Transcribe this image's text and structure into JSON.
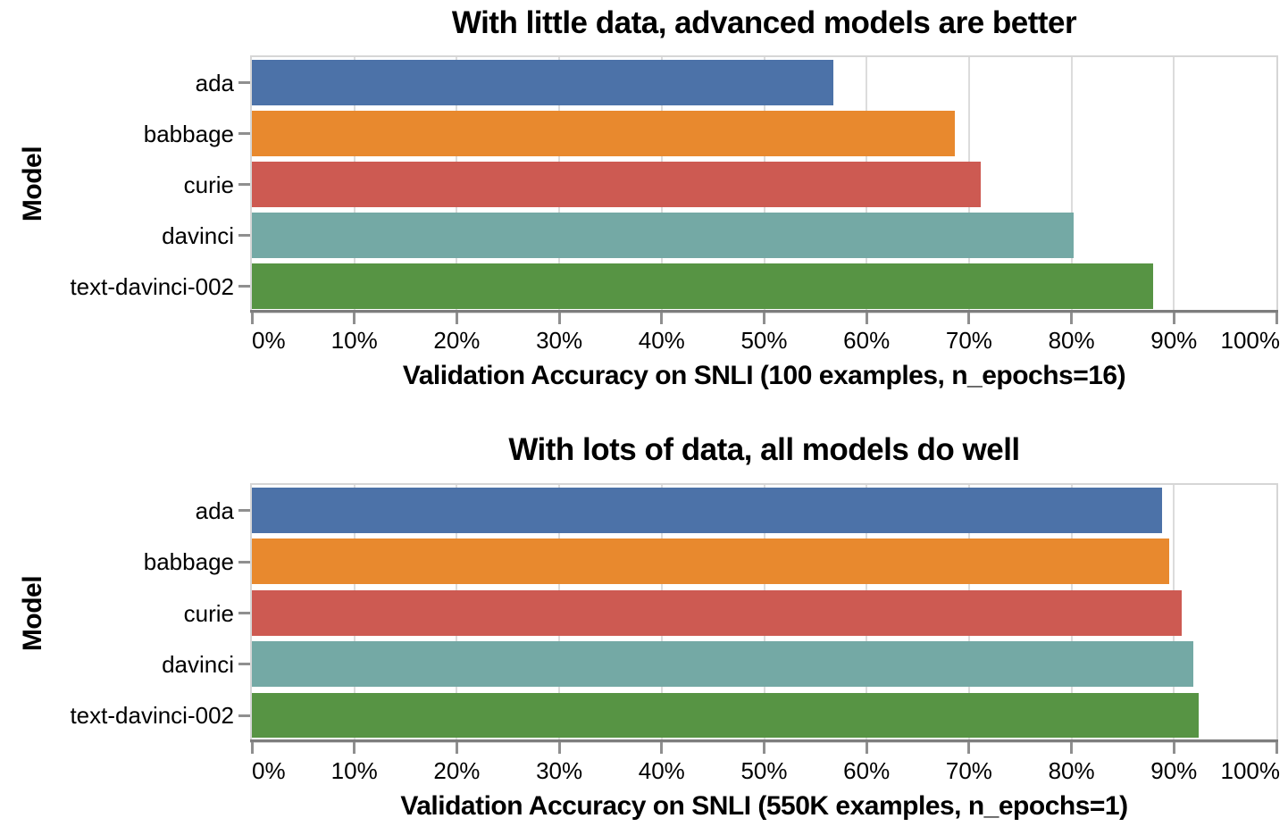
{
  "figure": {
    "background": "#ffffff",
    "text_color": "#000000",
    "axis_style": {
      "gridline_color": "#dcdcdc",
      "frame_color": "#d6d6d6",
      "spine_color": "#7d7d7d",
      "tick_color": "#8f8f8f"
    }
  },
  "chart_data": [
    {
      "type": "bar",
      "orientation": "horizontal",
      "title": "With little data, advanced models are better",
      "xlabel": "Validation Accuracy on SNLI (100 examples, n_epochs=16)",
      "ylabel": "Model",
      "categories": [
        "ada",
        "babbage",
        "curie",
        "davinci",
        "text-davinci-002"
      ],
      "values": [
        56.8,
        68.6,
        71.1,
        80.2,
        88.0
      ],
      "value_unit": "percent",
      "xlim": [
        0,
        100
      ],
      "xtick_labels": [
        "0%",
        "10%",
        "20%",
        "30%",
        "40%",
        "50%",
        "60%",
        "70%",
        "80%",
        "90%",
        "100%"
      ],
      "bar_colors": [
        "#4c72a8",
        "#e8892e",
        "#cd5a52",
        "#74a9a5",
        "#579444"
      ],
      "grid": true,
      "legend": "none"
    },
    {
      "type": "bar",
      "orientation": "horizontal",
      "title": "With lots of data, all models do well",
      "xlabel": "Validation Accuracy on SNLI (550K examples, n_epochs=1)",
      "ylabel": "Model",
      "categories": [
        "ada",
        "babbage",
        "curie",
        "davinci",
        "text-davinci-002"
      ],
      "values": [
        88.8,
        89.5,
        90.8,
        91.9,
        92.4
      ],
      "value_unit": "percent",
      "xlim": [
        0,
        100
      ],
      "xtick_labels": [
        "0%",
        "10%",
        "20%",
        "30%",
        "40%",
        "50%",
        "60%",
        "70%",
        "80%",
        "90%",
        "100%"
      ],
      "bar_colors": [
        "#4c72a8",
        "#e8892e",
        "#cd5a52",
        "#74a9a5",
        "#579444"
      ],
      "grid": true,
      "legend": "none"
    }
  ]
}
